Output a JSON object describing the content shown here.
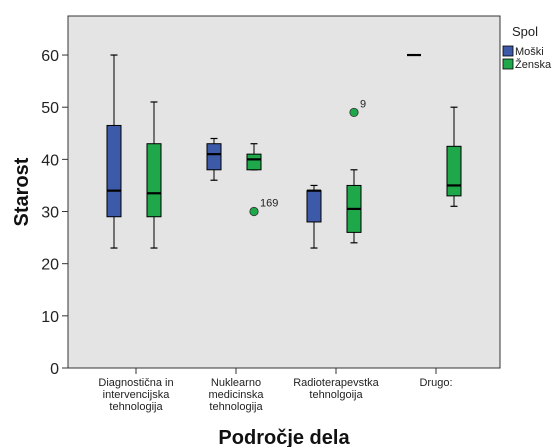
{
  "chart_data": {
    "type": "boxplot",
    "xlabel": "Področje dela",
    "ylabel": "Starost",
    "ylim": [
      0,
      65
    ],
    "yticks": [
      0,
      10,
      20,
      30,
      40,
      50,
      60
    ],
    "grid": false,
    "legend": {
      "title": "Spol",
      "position": "top-right"
    },
    "categories": [
      "Diagnostična in intervencijska tehnologija",
      "Nuklearno medicinska tehnologija",
      "Radioterapevstka tehnolgoija",
      "Drugo:"
    ],
    "category_lines": [
      [
        "Diagnostična in",
        "intervencijska",
        "tehnologija"
      ],
      [
        "Nuklearno",
        "medicinska",
        "tehnologija"
      ],
      [
        "Radioterapevstka",
        "tehnolgoija"
      ],
      [
        "Drugo:"
      ]
    ],
    "series": [
      {
        "name": "Moški",
        "color": "#3d5aa8",
        "boxes": [
          {
            "min": 23,
            "q1": 29,
            "median": 34,
            "q3": 46.5,
            "max": 60,
            "outliers": []
          },
          {
            "min": 36,
            "q1": 38,
            "median": 41,
            "q3": 43,
            "max": 44,
            "outliers": []
          },
          {
            "min": 23,
            "q1": 28,
            "median": 34,
            "q3": 34,
            "max": 35,
            "outliers": []
          },
          {
            "min": 60,
            "q1": 60,
            "median": 60,
            "q3": 60,
            "max": 60,
            "outliers": []
          }
        ]
      },
      {
        "name": "Ženska",
        "color": "#1ea84a",
        "boxes": [
          {
            "min": 23,
            "q1": 29,
            "median": 33.5,
            "q3": 43,
            "max": 51,
            "outliers": []
          },
          {
            "min": 38,
            "q1": 38,
            "median": 40,
            "q3": 41,
            "max": 43,
            "outliers": [
              {
                "value": 30,
                "label": "169"
              }
            ]
          },
          {
            "min": 24,
            "q1": 26,
            "median": 30.5,
            "q3": 35,
            "max": 38,
            "outliers": [
              {
                "value": 49,
                "label": "9"
              }
            ]
          },
          {
            "min": 31,
            "q1": 33,
            "median": 35,
            "q3": 42.5,
            "max": 50,
            "outliers": []
          }
        ]
      }
    ]
  }
}
